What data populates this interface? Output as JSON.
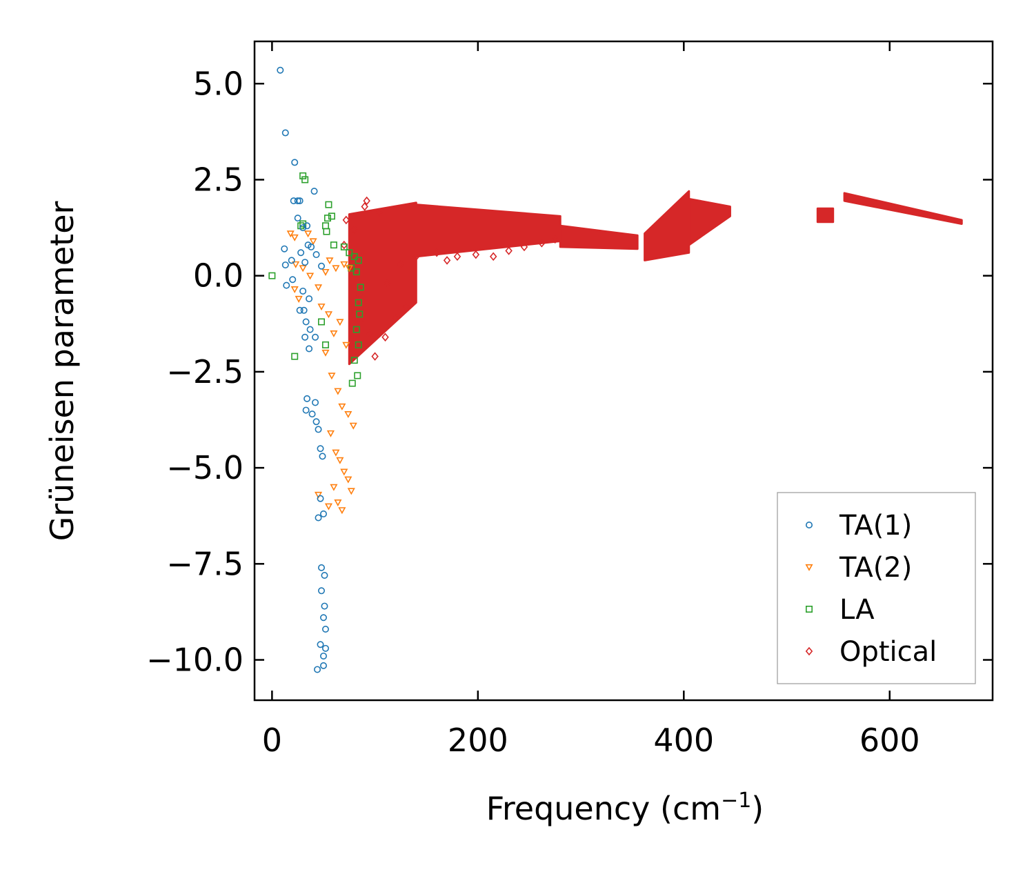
{
  "chart_data": {
    "type": "scatter",
    "xlabel": "Frequency (cm",
    "xlabel_sup": "−1",
    "xlabel_close": ")",
    "ylabel": "Grüneisen parameter",
    "xlim": [
      -17,
      700
    ],
    "ylim": [
      -11.05,
      6.1
    ],
    "xticks": [
      0,
      200,
      400,
      600
    ],
    "xtick_labels": [
      "0",
      "200",
      "400",
      "600"
    ],
    "yticks": [
      5.0,
      2.5,
      0.0,
      -2.5,
      -5.0,
      -7.5,
      -10.0
    ],
    "ytick_labels": [
      "5.0",
      "2.5",
      "0.0",
      "−2.5",
      "−5.0",
      "−7.5",
      "−10.0"
    ],
    "legend_position": "lower-right",
    "series": [
      {
        "name": "TA(1)",
        "marker": "circle",
        "color": "#1f77b4",
        "points": [
          [
            8,
            5.35
          ],
          [
            13,
            3.72
          ],
          [
            22,
            2.95
          ],
          [
            41,
            2.2
          ],
          [
            21,
            1.95
          ],
          [
            25,
            1.95
          ],
          [
            27,
            1.95
          ],
          [
            25,
            1.5
          ],
          [
            30,
            1.25
          ],
          [
            34,
            1.3
          ],
          [
            12,
            0.7
          ],
          [
            28,
            0.6
          ],
          [
            35,
            0.8
          ],
          [
            38,
            0.75
          ],
          [
            43,
            0.55
          ],
          [
            13,
            0.28
          ],
          [
            19,
            0.4
          ],
          [
            32,
            0.35
          ],
          [
            48,
            0.25
          ],
          [
            14,
            -0.25
          ],
          [
            20,
            -0.1
          ],
          [
            30,
            -0.4
          ],
          [
            36,
            -0.6
          ],
          [
            31,
            -0.9
          ],
          [
            27,
            -0.9
          ],
          [
            33,
            -1.2
          ],
          [
            37,
            -1.4
          ],
          [
            42,
            -1.6
          ],
          [
            32,
            -1.6
          ],
          [
            36,
            -1.9
          ],
          [
            34,
            -3.2
          ],
          [
            33,
            -3.5
          ],
          [
            39,
            -3.6
          ],
          [
            42,
            -3.3
          ],
          [
            43,
            -3.8
          ],
          [
            45,
            -4.0
          ],
          [
            47,
            -4.5
          ],
          [
            49,
            -4.7
          ],
          [
            47,
            -5.8
          ],
          [
            45,
            -6.3
          ],
          [
            50,
            -6.2
          ],
          [
            48,
            -7.6
          ],
          [
            51,
            -7.8
          ],
          [
            48,
            -8.2
          ],
          [
            51,
            -8.6
          ],
          [
            50,
            -8.9
          ],
          [
            52,
            -9.2
          ],
          [
            47,
            -9.6
          ],
          [
            52,
            -9.7
          ],
          [
            50,
            -9.9
          ],
          [
            44,
            -10.25
          ],
          [
            50,
            -10.15
          ]
        ]
      },
      {
        "name": "TA(2)",
        "marker": "triangle-down",
        "color": "#ff7f0e",
        "points": [
          [
            18,
            1.1
          ],
          [
            22,
            1.0
          ],
          [
            35,
            1.1
          ],
          [
            40,
            0.9
          ],
          [
            23,
            0.3
          ],
          [
            30,
            0.2
          ],
          [
            37,
            0.0
          ],
          [
            22,
            -0.35
          ],
          [
            26,
            -0.6
          ],
          [
            45,
            -0.3
          ],
          [
            52,
            0.1
          ],
          [
            56,
            0.4
          ],
          [
            62,
            0.2
          ],
          [
            70,
            0.3
          ],
          [
            75,
            0.2
          ],
          [
            48,
            -0.8
          ],
          [
            55,
            -1.0
          ],
          [
            60,
            -1.5
          ],
          [
            66,
            -1.2
          ],
          [
            72,
            -1.8
          ],
          [
            52,
            -2.0
          ],
          [
            58,
            -2.6
          ],
          [
            64,
            -3.0
          ],
          [
            68,
            -3.4
          ],
          [
            74,
            -3.6
          ],
          [
            79,
            -3.9
          ],
          [
            57,
            -4.1
          ],
          [
            62,
            -4.6
          ],
          [
            66,
            -4.8
          ],
          [
            70,
            -5.1
          ],
          [
            74,
            -5.3
          ],
          [
            77,
            -5.6
          ],
          [
            60,
            -5.5
          ],
          [
            64,
            -5.9
          ],
          [
            68,
            -6.1
          ],
          [
            55,
            -6.0
          ],
          [
            45,
            -5.7
          ]
        ]
      },
      {
        "name": "LA",
        "marker": "square",
        "color": "#2ca02c",
        "points": [
          [
            0,
            0.0
          ],
          [
            30,
            2.6
          ],
          [
            32,
            2.5
          ],
          [
            28,
            1.3
          ],
          [
            30,
            1.35
          ],
          [
            55,
            1.85
          ],
          [
            54,
            1.5
          ],
          [
            52,
            1.3
          ],
          [
            58,
            1.55
          ],
          [
            53,
            1.15
          ],
          [
            60,
            0.8
          ],
          [
            70,
            0.75
          ],
          [
            75,
            0.6
          ],
          [
            80,
            0.5
          ],
          [
            84,
            0.4
          ],
          [
            77,
            0.2
          ],
          [
            82,
            0.1
          ],
          [
            86,
            -0.3
          ],
          [
            84,
            -0.7
          ],
          [
            85,
            -1.0
          ],
          [
            82,
            -1.4
          ],
          [
            84,
            -1.8
          ],
          [
            80,
            -2.2
          ],
          [
            83,
            -2.6
          ],
          [
            78,
            -2.8
          ],
          [
            22,
            -2.1
          ],
          [
            48,
            -1.2
          ],
          [
            52,
            -1.8
          ]
        ]
      },
      {
        "name": "Optical",
        "marker": "diamond",
        "color": "#d62728",
        "points": [
          [
            72,
            1.45
          ],
          [
            80,
            1.2
          ],
          [
            90,
            1.8
          ],
          [
            92,
            1.95
          ],
          [
            104,
            1.65
          ],
          [
            70,
            0.8
          ],
          [
            78,
            0.2
          ],
          [
            85,
            -0.5
          ],
          [
            88,
            -1.1
          ],
          [
            95,
            -1.5
          ],
          [
            100,
            -2.1
          ],
          [
            110,
            -1.6
          ],
          [
            120,
            -1.1
          ],
          [
            130,
            -0.8
          ],
          [
            112,
            -0.2
          ],
          [
            125,
            0.3
          ],
          [
            140,
            0.5
          ],
          [
            160,
            0.6
          ],
          [
            170,
            0.4
          ],
          [
            180,
            0.5
          ],
          [
            198,
            0.55
          ],
          [
            215,
            0.5
          ],
          [
            230,
            0.65
          ],
          [
            245,
            0.75
          ],
          [
            262,
            0.85
          ],
          [
            275,
            0.95
          ]
        ],
        "regions": [
          {
            "x_range": [
              75,
              140
            ],
            "y_lower": [
              -2.3,
              -0.7
            ],
            "y_upper": [
              1.6,
              1.9
            ]
          },
          {
            "x_range": [
              140,
              280
            ],
            "y_lower": [
              0.5,
              0.9
            ],
            "y_upper": [
              1.85,
              1.55
            ]
          },
          {
            "x_range": [
              280,
              355
            ],
            "y_lower": [
              0.75,
              0.7
            ],
            "y_upper": [
              1.3,
              1.05
            ]
          },
          {
            "x_range": [
              362,
              405
            ],
            "y_lower": [
              0.4,
              0.6
            ],
            "y_upper": [
              1.1,
              2.2
            ]
          },
          {
            "x_range": [
              405,
              445
            ],
            "y_lower": [
              0.8,
              1.55
            ],
            "y_upper": [
              2.0,
              1.8
            ]
          },
          {
            "x_range": [
              530,
              545
            ],
            "y_lower": [
              1.4,
              1.4
            ],
            "y_upper": [
              1.75,
              1.75
            ]
          },
          {
            "x_range": [
              556,
              670
            ],
            "y_lower": [
              1.95,
              1.35
            ],
            "y_upper": [
              2.15,
              1.45
            ]
          }
        ]
      }
    ]
  }
}
